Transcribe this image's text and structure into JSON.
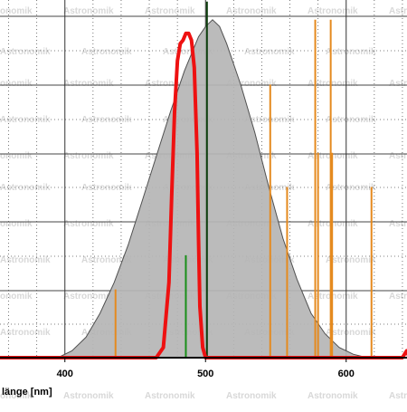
{
  "chart_data": {
    "type": "line",
    "title": "",
    "xlabel": "länge [nm]",
    "ylabel": "",
    "xlim": [
      350,
      645
    ],
    "ylim": [
      0,
      1
    ],
    "x_ticks": [
      400,
      500,
      600
    ],
    "x_tick_labels": [
      "400",
      "500",
      "600"
    ],
    "grid": true,
    "watermark": "Astronomik",
    "colors": {
      "band": "#b5b5b5",
      "band_edge": "#505050",
      "filter": "#ee1111",
      "emission_orange": "#e58a1f",
      "emission_green": "#1a8f1a",
      "reference_line": "#0c3d0c",
      "grid": "#000000"
    },
    "series": [
      {
        "kind": "area",
        "x": [
          350,
          365,
          375,
          385,
          395,
          405,
          415,
          425,
          435,
          445,
          455,
          465,
          475,
          485,
          495,
          500,
          505,
          510,
          515,
          525,
          535,
          545,
          555,
          565,
          575,
          585,
          595,
          605,
          615,
          625,
          635,
          645
        ],
        "values": [
          0,
          0,
          0,
          0,
          0,
          0.02,
          0.06,
          0.13,
          0.22,
          0.33,
          0.46,
          0.59,
          0.72,
          0.84,
          0.94,
          0.97,
          0.99,
          0.97,
          0.92,
          0.8,
          0.66,
          0.5,
          0.35,
          0.23,
          0.13,
          0.07,
          0.03,
          0.01,
          0,
          0,
          0,
          0
        ]
      },
      {
        "kind": "line",
        "x": [
          350,
          465,
          470,
          474,
          476,
          478,
          480,
          482,
          484,
          486,
          488,
          490,
          492,
          494,
          495,
          496,
          498,
          500,
          504,
          640,
          643,
          645
        ],
        "values": [
          0,
          0,
          0.03,
          0.22,
          0.48,
          0.72,
          0.87,
          0.92,
          0.93,
          0.95,
          0.95,
          0.93,
          0.85,
          0.6,
          0.35,
          0.15,
          0.03,
          0,
          0,
          0,
          0.02,
          0
        ]
      },
      {
        "kind": "emission",
        "wavelengths": [
          436,
          546,
          558,
          578,
          580,
          589,
          590,
          618
        ],
        "values": [
          0.2,
          0.8,
          0.5,
          0.99,
          0.6,
          0.99,
          0.6,
          0.5
        ]
      },
      {
        "kind": "emission",
        "wavelengths": [
          486,
          645
        ],
        "values": [
          0.3,
          0.99
        ]
      },
      {
        "kind": "reference",
        "wavelengths": [
          501
        ],
        "values": [
          0.99
        ]
      }
    ]
  }
}
